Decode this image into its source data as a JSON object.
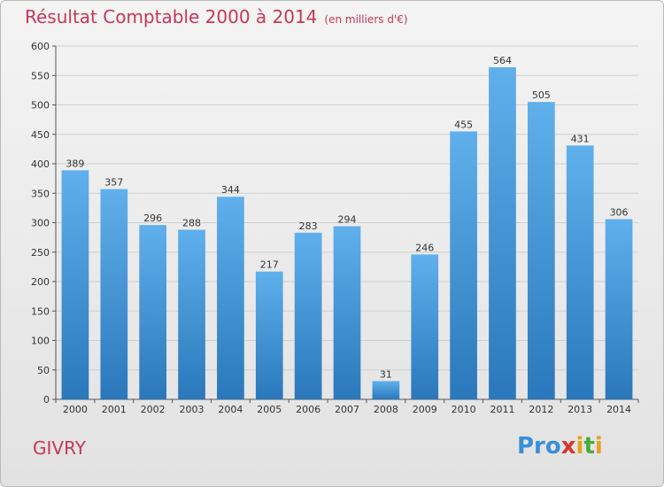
{
  "header": {
    "title": "Résultat Comptable 2000 à 2014",
    "unit": "(en milliers d'€)"
  },
  "footer": {
    "town": "GIVRY",
    "logo_text": "Proxiti"
  },
  "colors": {
    "title": "#c8365a",
    "bar_top": "#5fb0ec",
    "bar_bottom": "#2a78bb",
    "grid": "#cfcfcf"
  },
  "chart_data": {
    "type": "bar",
    "title": "Résultat Comptable 2000 à 2014",
    "subtitle": "(en milliers d'€)",
    "xlabel": "",
    "ylabel": "",
    "categories": [
      "2000",
      "2001",
      "2002",
      "2003",
      "2004",
      "2005",
      "2006",
      "2007",
      "2008",
      "2009",
      "2010",
      "2011",
      "2012",
      "2013",
      "2014"
    ],
    "values": [
      389,
      357,
      296,
      288,
      344,
      217,
      283,
      294,
      31,
      246,
      455,
      564,
      505,
      431,
      306
    ],
    "ylim": [
      0,
      600
    ],
    "yticks": [
      0,
      50,
      100,
      150,
      200,
      250,
      300,
      350,
      400,
      450,
      500,
      550,
      600
    ],
    "grid": true,
    "data_labels": true
  }
}
